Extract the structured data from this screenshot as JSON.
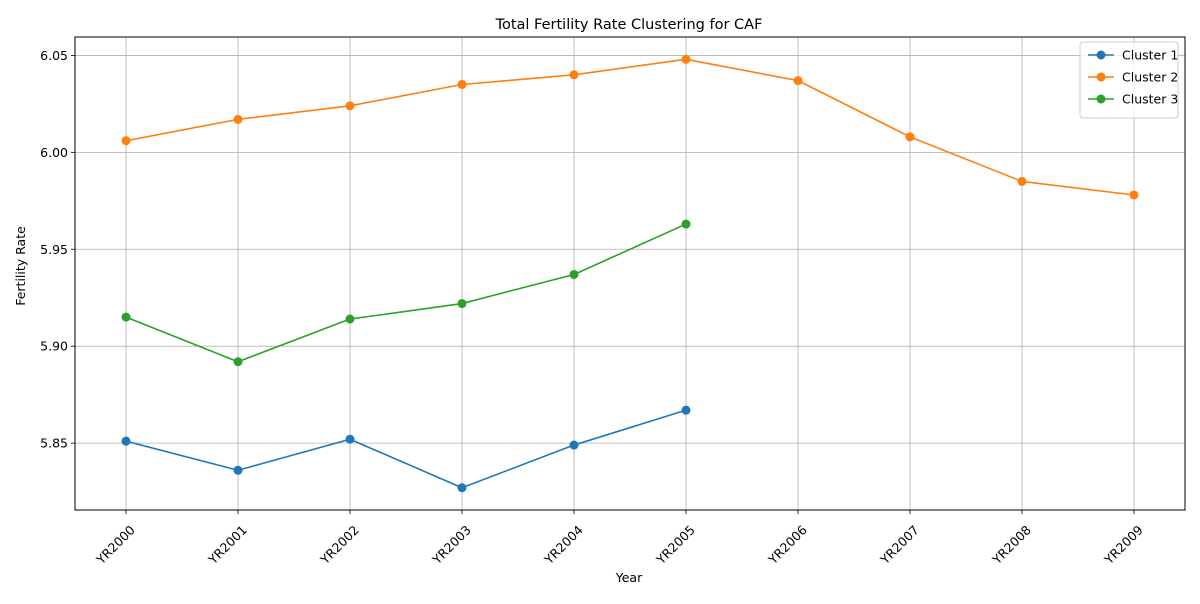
{
  "chart_data": {
    "type": "line",
    "title": "Total Fertility Rate Clustering for CAF",
    "xlabel": "Year",
    "ylabel": "Fertility Rate",
    "categories": [
      "YR2000",
      "YR2001",
      "YR2002",
      "YR2003",
      "YR2004",
      "YR2005",
      "YR2006",
      "YR2007",
      "YR2008",
      "YR2009"
    ],
    "ylim": [
      5.8155,
      6.0595
    ],
    "yticks": [
      "5.85",
      "5.90",
      "5.95",
      "6.00",
      "6.05"
    ],
    "ytick_values": [
      5.85,
      5.9,
      5.95,
      6.0,
      6.05
    ],
    "grid": true,
    "legend_position": "top-right",
    "series": [
      {
        "name": "Cluster 1",
        "color": "#1f77b4",
        "values": [
          5.851,
          5.836,
          5.852,
          5.827,
          5.849,
          5.867,
          null,
          null,
          null,
          null
        ]
      },
      {
        "name": "Cluster 2",
        "color": "#ff7f0e",
        "values": [
          6.006,
          6.017,
          6.024,
          6.035,
          6.04,
          6.048,
          6.037,
          6.008,
          5.985,
          5.978
        ]
      },
      {
        "name": "Cluster 3",
        "color": "#2ca02c",
        "values": [
          5.915,
          5.892,
          5.914,
          5.922,
          5.937,
          5.963,
          null,
          null,
          null,
          null
        ]
      }
    ]
  }
}
